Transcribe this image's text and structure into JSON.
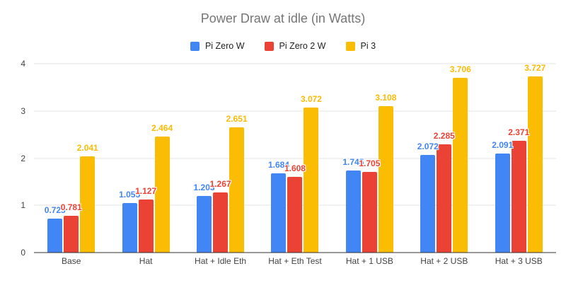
{
  "chart_data": {
    "type": "bar",
    "title": "Power Draw at idle (in Watts)",
    "xlabel": "",
    "ylabel": "",
    "ylim": [
      0,
      4
    ],
    "yticks": [
      0,
      1,
      2,
      3,
      4
    ],
    "grid": true,
    "legend_position": "top",
    "data_labels": true,
    "categories": [
      "Base",
      "Hat",
      "Hat + Idle Eth",
      "Hat + Eth Test",
      "Hat + 1 USB",
      "Hat + 2 USB",
      "Hat + 3 USB"
    ],
    "series": [
      {
        "name": "Pi Zero W",
        "color": "#4285F4",
        "values": [
          0.725,
          1.055,
          1.203,
          1.684,
          1.745,
          2.072,
          2.091
        ]
      },
      {
        "name": "Pi Zero 2 W",
        "color": "#EA4335",
        "values": [
          0.781,
          1.127,
          1.267,
          1.608,
          1.705,
          2.285,
          2.371
        ]
      },
      {
        "name": "Pi 3",
        "color": "#FBBC04",
        "values": [
          2.041,
          2.464,
          2.651,
          3.072,
          3.108,
          3.706,
          3.727
        ]
      }
    ],
    "colors": {
      "title_text": "#757575",
      "axis_text": "#424242",
      "gridline": "#e3e3e3",
      "axis_line": "#333333",
      "background": "#ffffff"
    }
  }
}
